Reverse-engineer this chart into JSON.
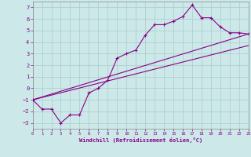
{
  "xlabel": "Windchill (Refroidissement éolien,°C)",
  "background_color": "#cce8e8",
  "grid_color": "#aacccc",
  "line_color": "#880088",
  "xlim": [
    0,
    23
  ],
  "ylim": [
    -3.5,
    7.5
  ],
  "xticks": [
    0,
    1,
    2,
    3,
    4,
    5,
    6,
    7,
    8,
    9,
    10,
    11,
    12,
    13,
    14,
    15,
    16,
    17,
    18,
    19,
    20,
    21,
    22,
    23
  ],
  "yticks": [
    -3,
    -2,
    -1,
    0,
    1,
    2,
    3,
    4,
    5,
    6,
    7
  ],
  "line1_x": [
    0,
    1,
    2,
    3,
    4,
    5,
    6,
    7,
    8,
    9,
    10,
    11,
    12,
    13,
    14,
    15,
    16,
    17,
    18,
    19,
    20,
    21,
    22,
    23
  ],
  "line1_y": [
    -1,
    -1.8,
    -1.8,
    -3,
    -2.3,
    -2.3,
    -0.4,
    0.0,
    0.7,
    2.6,
    3.0,
    3.3,
    4.6,
    5.5,
    5.5,
    5.8,
    6.2,
    7.2,
    6.1,
    6.1,
    5.3,
    4.8,
    4.8,
    4.7
  ],
  "line2_x": [
    0,
    23
  ],
  "line2_y": [
    -1,
    4.7
  ],
  "line3_x": [
    0,
    23
  ],
  "line3_y": [
    -1,
    3.7
  ]
}
